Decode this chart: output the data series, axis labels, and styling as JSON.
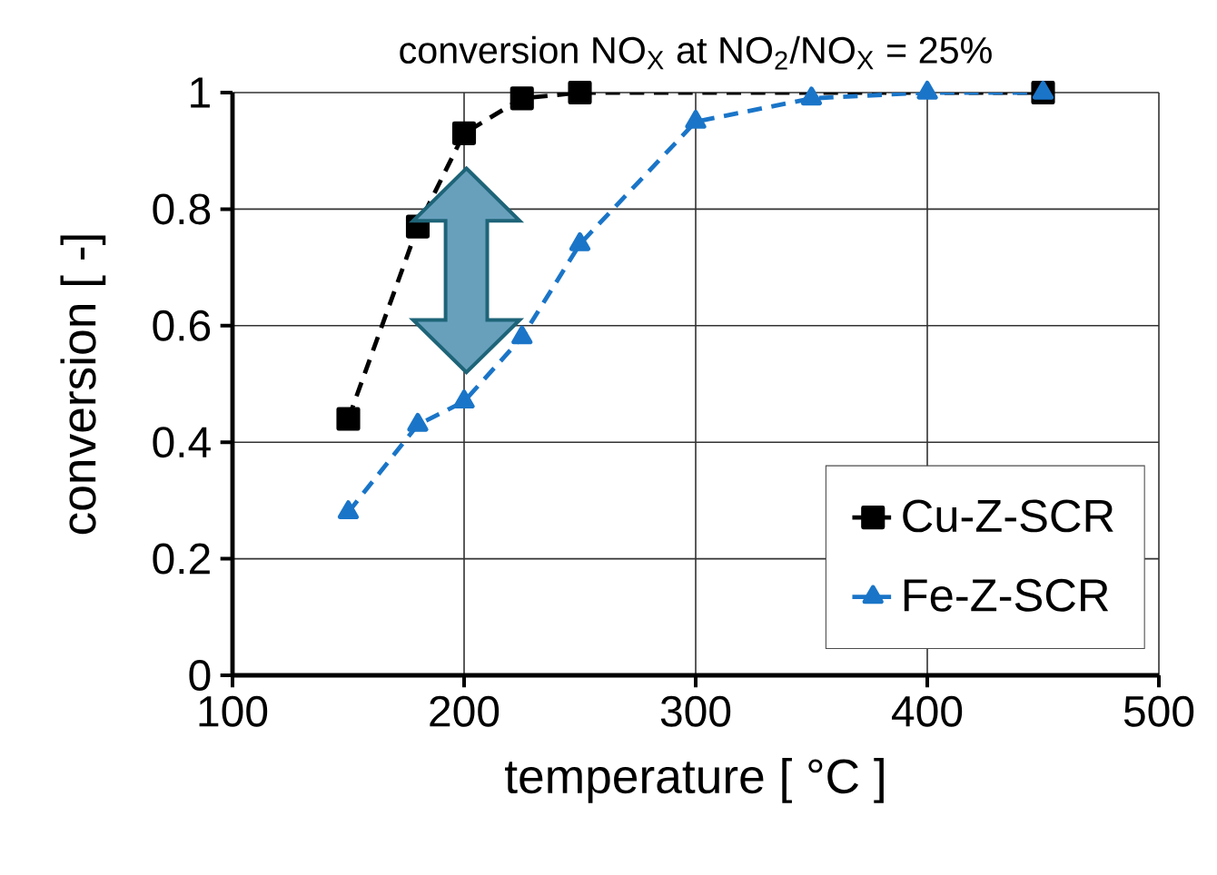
{
  "chart_data": {
    "type": "line",
    "title": "conversion NO$_{X}$ at NO$_{2}$/NO$_{X}$ = 25%",
    "xlabel": "temperature [ °C ]",
    "ylabel": "conversion [ -]",
    "xlim": [
      100,
      500
    ],
    "ylim": [
      0,
      1
    ],
    "xticks": [
      100,
      200,
      300,
      400,
      500
    ],
    "yticks": [
      0,
      0.2,
      0.4,
      0.6,
      0.8,
      1
    ],
    "grid": true,
    "legend": "bottom right",
    "line_style": "dashed",
    "series": [
      {
        "name": "Cu-Z-SCR",
        "color": "#000000",
        "marker": "square",
        "x": [
          150,
          180,
          200,
          225,
          250,
          450
        ],
        "values": [
          0.44,
          0.77,
          0.93,
          0.99,
          1.0,
          1.0
        ]
      },
      {
        "name": "Fe-Z-SCR",
        "color": "#1a75c8",
        "marker": "triangle",
        "x": [
          150,
          180,
          200,
          225,
          250,
          300,
          350,
          400,
          450
        ],
        "values": [
          0.28,
          0.43,
          0.47,
          0.58,
          0.74,
          0.95,
          0.99,
          1.0,
          1.0
        ]
      }
    ]
  }
}
